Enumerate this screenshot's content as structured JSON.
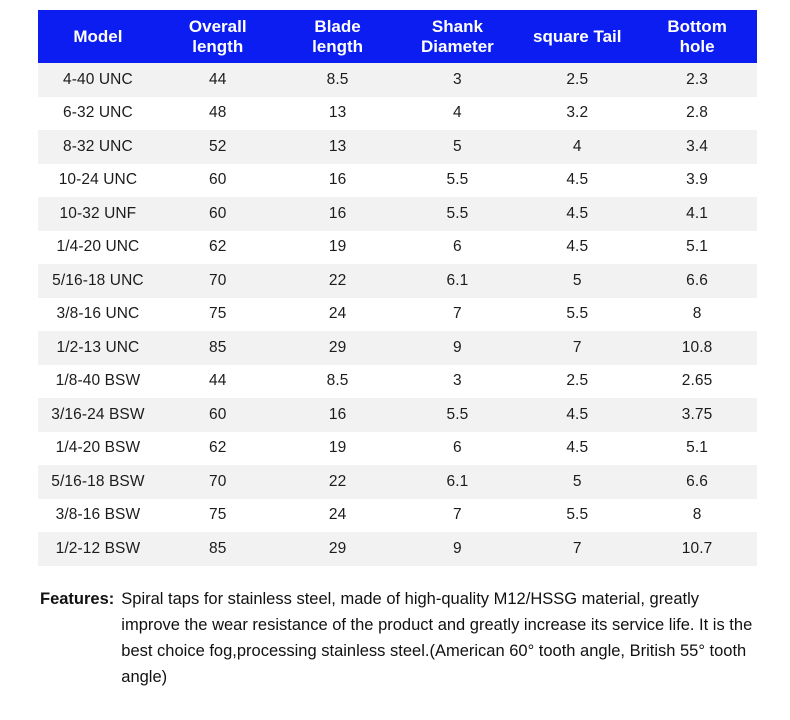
{
  "table": {
    "headers": [
      "Model",
      "Overall length",
      "Blade length",
      "Shank Diameter",
      "square Tail",
      "Bottom hole"
    ],
    "rows": [
      [
        "4-40 UNC",
        "44",
        "8.5",
        "3",
        "2.5",
        "2.3"
      ],
      [
        "6-32 UNC",
        "48",
        "13",
        "4",
        "3.2",
        "2.8"
      ],
      [
        "8-32 UNC",
        "52",
        "13",
        "5",
        "4",
        "3.4"
      ],
      [
        "10-24 UNC",
        "60",
        "16",
        "5.5",
        "4.5",
        "3.9"
      ],
      [
        "10-32 UNF",
        "60",
        "16",
        "5.5",
        "4.5",
        "4.1"
      ],
      [
        "1/4-20 UNC",
        "62",
        "19",
        "6",
        "4.5",
        "5.1"
      ],
      [
        "5/16-18 UNC",
        "70",
        "22",
        "6.1",
        "5",
        "6.6"
      ],
      [
        "3/8-16 UNC",
        "75",
        "24",
        "7",
        "5.5",
        "8"
      ],
      [
        "1/2-13 UNC",
        "85",
        "29",
        "9",
        "7",
        "10.8"
      ],
      [
        "1/8-40 BSW",
        "44",
        "8.5",
        "3",
        "2.5",
        "2.65"
      ],
      [
        "3/16-24 BSW",
        "60",
        "16",
        "5.5",
        "4.5",
        "3.75"
      ],
      [
        "1/4-20 BSW",
        "62",
        "19",
        "6",
        "4.5",
        "5.1"
      ],
      [
        "5/16-18 BSW",
        "70",
        "22",
        "6.1",
        "5",
        "6.6"
      ],
      [
        "3/8-16 BSW",
        "75",
        "24",
        "7",
        "5.5",
        "8"
      ],
      [
        "1/2-12 BSW",
        "85",
        "29",
        "9",
        "7",
        "10.7"
      ]
    ]
  },
  "features": {
    "label": "Features:",
    "text": "Spiral taps for stainless steel, made of high-quality M12/HSSG material, greatly improve the wear resistance of the product and greatly increase its service life. It is the best choice fog,processing stainless steel.(American 60° tooth angle, British 55° tooth angle)"
  },
  "colors": {
    "header_bg": "#0b1df0",
    "header_text": "#ffffff",
    "row_alt_bg": "#f2f2f2",
    "body_text": "#1c1c1c"
  }
}
